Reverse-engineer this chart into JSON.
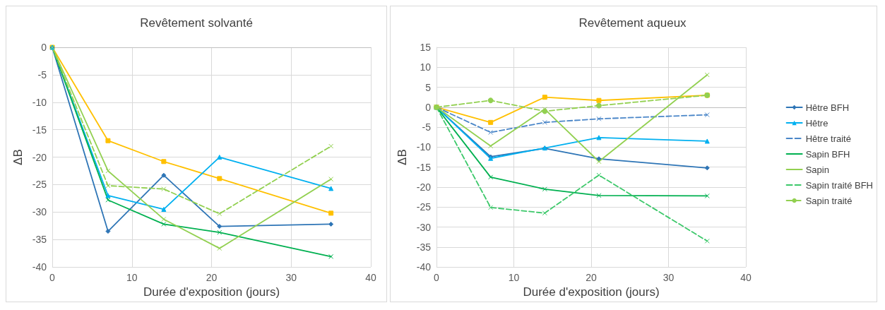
{
  "chart_data": [
    {
      "type": "line",
      "title": "Revêtement solvanté",
      "xlabel": "Durée d'exposition (jours)",
      "ylabel": "ΔB",
      "x": [
        0,
        7,
        14,
        21,
        35
      ],
      "xlim": [
        0,
        40
      ],
      "xticks": [
        0,
        10,
        20,
        30,
        40
      ],
      "ylim": [
        -40,
        0
      ],
      "yticks": [
        -40,
        -35,
        -30,
        -25,
        -20,
        -15,
        -10,
        -5,
        0
      ],
      "grid": true,
      "legend": false,
      "series": [
        {
          "color": "#ffc000",
          "marker": "square",
          "line_style": "solid",
          "values": [
            0,
            -17,
            -20.8,
            -23.9,
            -30.2
          ]
        },
        {
          "color": "#2e75b6",
          "marker": "diamond",
          "line_style": "solid",
          "values": [
            0,
            -33.5,
            -23.3,
            -32.6,
            -32.2
          ]
        },
        {
          "color": "#00b0f0",
          "marker": "triangle",
          "line_style": "solid",
          "values": [
            0,
            -27,
            -29.5,
            -20,
            -25.7
          ]
        },
        {
          "color": "#00b050",
          "marker": "cross",
          "line_style": "solid",
          "values": [
            0,
            -27.8,
            -32.2,
            -33.7,
            -38.1
          ]
        },
        {
          "color": "#92d050",
          "marker": "cross",
          "line_style": "solid",
          "values": [
            0,
            -22.5,
            -31.3,
            -36.6,
            -24
          ]
        },
        {
          "color": "#92d050",
          "marker": "cross",
          "line_style": "dashed",
          "values": [
            0,
            -25.2,
            -25.8,
            -30.3,
            -18
          ]
        }
      ]
    },
    {
      "type": "line",
      "title": "Revêtement aqueux",
      "xlabel": "Durée d'exposition (jours)",
      "ylabel": "ΔB",
      "x": [
        0,
        7,
        14,
        21,
        35
      ],
      "xlim": [
        0,
        40
      ],
      "xticks": [
        0,
        10,
        20,
        30,
        40
      ],
      "ylim": [
        -40,
        15
      ],
      "yticks": [
        -40,
        -35,
        -30,
        -25,
        -20,
        -15,
        -10,
        -5,
        0,
        5,
        10,
        15
      ],
      "grid": true,
      "legend": "right",
      "series": [
        {
          "color": "#ffc000",
          "marker": "square",
          "line_style": "solid",
          "values": [
            0,
            -3.8,
            2.5,
            1.7,
            3
          ]
        },
        {
          "name": "Hêtre BFH",
          "color": "#2e75b6",
          "marker": "diamond",
          "line_style": "solid",
          "values": [
            0,
            -12.4,
            -10.3,
            -12.9,
            -15.2
          ]
        },
        {
          "name": "Hêtre",
          "color": "#00b0f0",
          "marker": "triangle",
          "line_style": "solid",
          "values": [
            0,
            -12.8,
            -10.2,
            -7.6,
            -8.5
          ]
        },
        {
          "name": "Hêtre traité",
          "color": "#4a86c8",
          "marker": "cross",
          "line_style": "dashed",
          "values": [
            0,
            -6.3,
            -3.8,
            -2.9,
            -1.9
          ]
        },
        {
          "name": "Sapin BFH",
          "color": "#00b050",
          "marker": "cross",
          "line_style": "solid",
          "values": [
            0,
            -17.5,
            -20.5,
            -22.1,
            -22.2
          ]
        },
        {
          "name": "Sapin",
          "color": "#92d050",
          "marker": "cross",
          "line_style": "solid",
          "values": [
            0,
            -9.7,
            -0.5,
            -13.6,
            8.1
          ]
        },
        {
          "name": "Sapin traité BFH",
          "color": "#3cc86a",
          "marker": "cross",
          "line_style": "dashed",
          "values": [
            0,
            -25.1,
            -26.5,
            -17,
            -33.5
          ]
        },
        {
          "name": "Sapin traité",
          "color": "#92d050",
          "marker": "circle",
          "line_style": "dashed",
          "values": [
            0,
            1.7,
            -1,
            0.4,
            3
          ]
        }
      ]
    }
  ]
}
